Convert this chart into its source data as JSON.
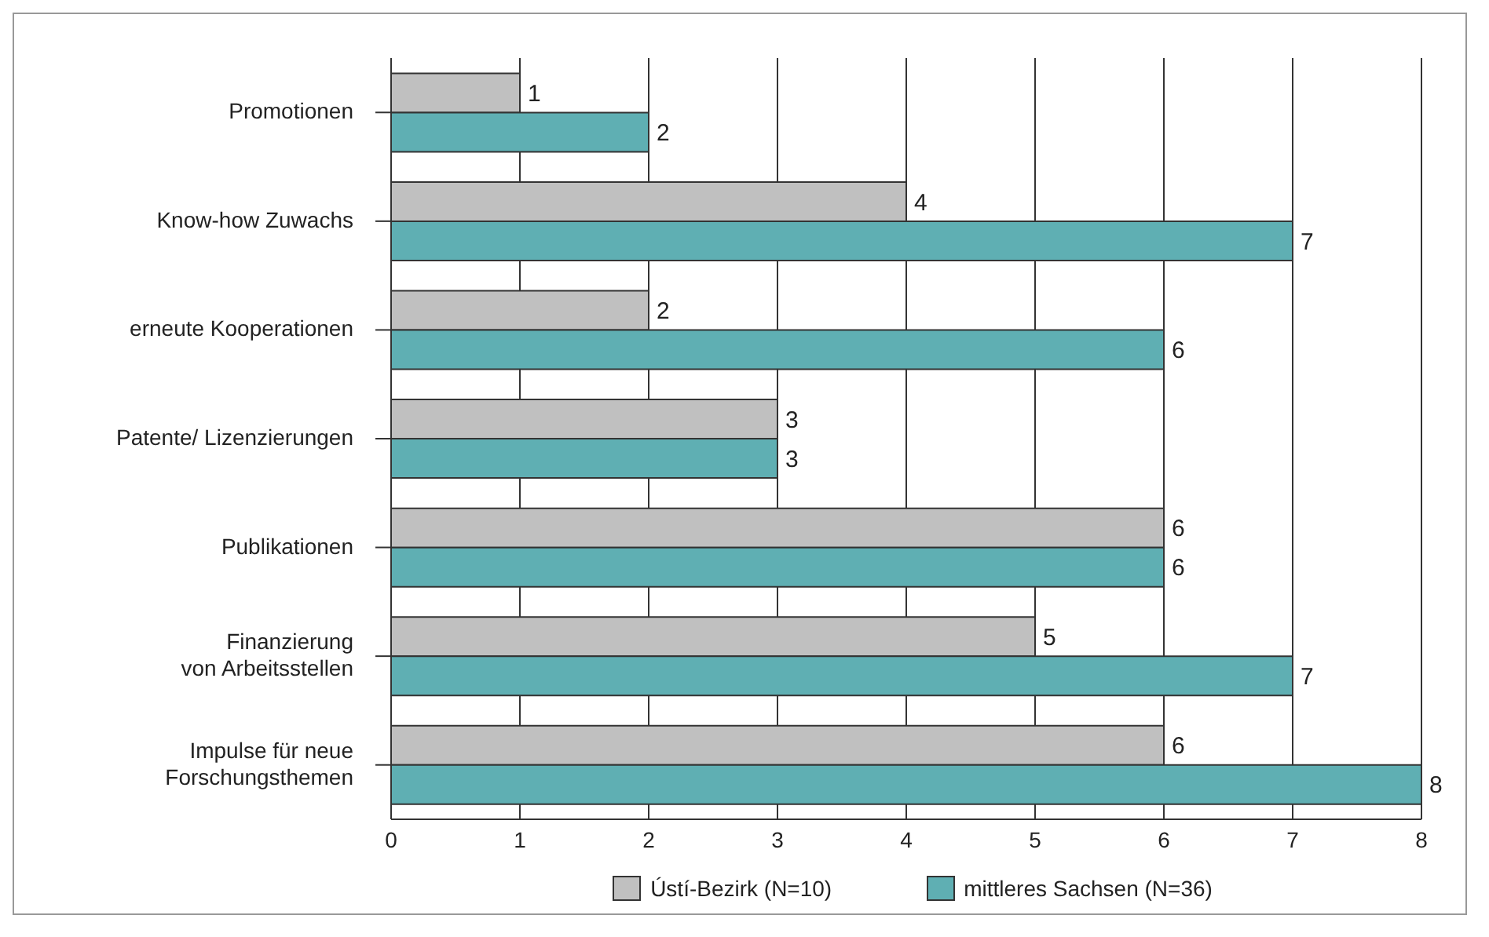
{
  "chart_data": {
    "type": "bar",
    "orientation": "horizontal",
    "categories": [
      "Promotionen",
      "Know-how Zuwachs",
      "erneute Kooperationen",
      "Patente/ Lizenzierungen",
      "Publikationen",
      "Finanzierung\nvon Arbeitsstellen",
      "Impulse für neue\nForschungsthemen"
    ],
    "series": [
      {
        "name": "Ústí-Bezirk (N=10)",
        "color": "#c0c0c0",
        "values": [
          1,
          4,
          2,
          3,
          6,
          5,
          6
        ]
      },
      {
        "name": "mittleres Sachsen (N=36)",
        "color": "#5fafb3",
        "values": [
          2,
          7,
          6,
          3,
          6,
          7,
          8
        ]
      }
    ],
    "xlim": [
      0,
      8
    ],
    "xticks": [
      0,
      1,
      2,
      3,
      4,
      5,
      6,
      7,
      8
    ],
    "grid": "x",
    "legend": "bottom",
    "data_labels": true
  }
}
